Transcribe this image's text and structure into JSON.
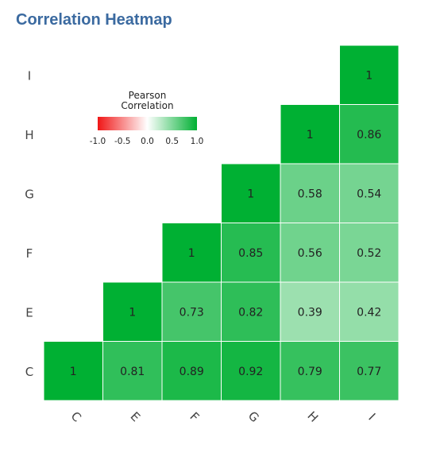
{
  "chart_data": {
    "type": "heatmap",
    "title": "Correlation Heatmap",
    "x_categories": [
      "C",
      "E",
      "F",
      "G",
      "H",
      "I"
    ],
    "y_categories": [
      "C",
      "E",
      "F",
      "G",
      "H",
      "I"
    ],
    "matrix": [
      [
        1,
        0.81,
        0.89,
        0.92,
        0.79,
        0.77
      ],
      [
        null,
        1,
        0.73,
        0.82,
        0.39,
        0.42
      ],
      [
        null,
        null,
        1,
        0.85,
        0.56,
        0.52
      ],
      [
        null,
        null,
        null,
        1,
        0.58,
        0.54
      ],
      [
        null,
        null,
        null,
        null,
        1,
        0.86
      ],
      [
        null,
        null,
        null,
        null,
        null,
        1
      ]
    ],
    "colorbar": {
      "title": "Pearson\nCorrelation",
      "range": [
        -1,
        1
      ],
      "tick_labels": [
        "-1.0",
        "-0.5",
        "0.0",
        "0.5",
        "1.0"
      ],
      "colors": {
        "neg": "#f01616",
        "mid": "#ffffff",
        "pos": "#00b033"
      }
    },
    "legend_placement": "upper-left",
    "grid": false,
    "xlabel": "",
    "ylabel": ""
  }
}
